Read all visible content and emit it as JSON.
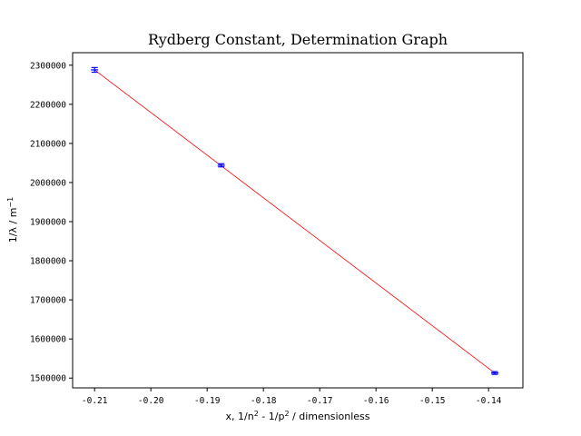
{
  "chart_data": {
    "type": "scatter",
    "title": "Rydberg Constant, Determination Graph",
    "xlabel": "x, 1/n² - 1/p² / dimensionless",
    "ylabel": "1/λ / m⁻¹",
    "xlim": [
      -0.2139,
      -0.1339
    ],
    "ylim": [
      1475000,
      2332000
    ],
    "x_ticks": [
      -0.21,
      -0.2,
      -0.19,
      -0.18,
      -0.17,
      -0.16,
      -0.15,
      -0.14
    ],
    "x_tick_labels": [
      "-0.21",
      "-0.20",
      "-0.19",
      "-0.18",
      "-0.17",
      "-0.16",
      "-0.15",
      "-0.14"
    ],
    "y_ticks": [
      1500000,
      1600000,
      1700000,
      1800000,
      1900000,
      2000000,
      2100000,
      2200000,
      2300000
    ],
    "y_tick_labels": [
      "1500000",
      "1600000",
      "1700000",
      "1800000",
      "1900000",
      "2000000",
      "2100000",
      "2200000",
      "2300000"
    ],
    "grid": false,
    "series": [
      {
        "type": "errorbar",
        "color": "#0000ff",
        "x": [
          -0.21,
          -0.1875,
          -0.1389
        ],
        "y": [
          2288000,
          2044000,
          1513000
        ],
        "yerr": [
          6000,
          4000,
          3500
        ]
      },
      {
        "type": "line",
        "color": "#ff0000",
        "x": [
          -0.21,
          -0.1389
        ],
        "y": [
          2288000,
          1513000
        ]
      }
    ]
  }
}
